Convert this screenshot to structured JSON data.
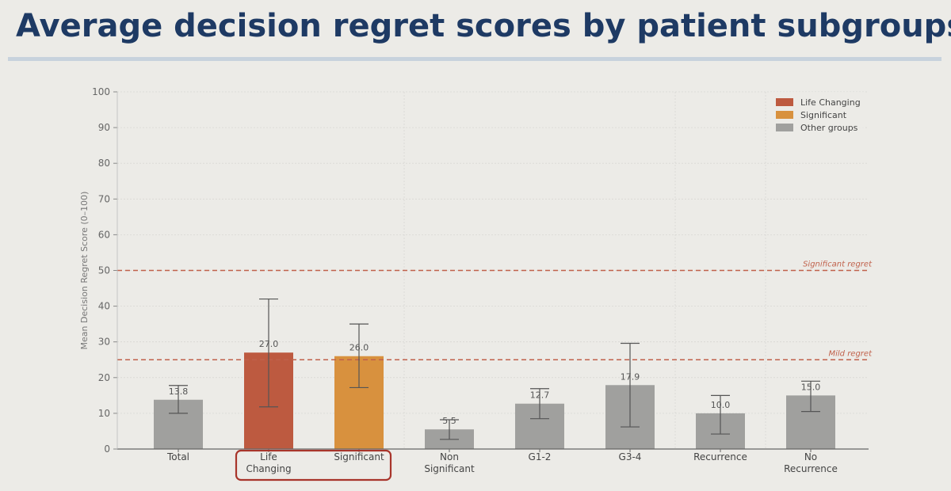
{
  "page": {
    "title": "Average decision regret scores by patient subgroups"
  },
  "chart_data": {
    "type": "bar",
    "title": "",
    "ylabel": "Mean Decision Regret Score (0–100)",
    "xlabel": "",
    "ylim": [
      0,
      100
    ],
    "yticks": [
      0,
      10,
      20,
      30,
      40,
      50,
      60,
      70,
      80,
      90,
      100
    ],
    "grid": true,
    "legend_position": "top-right",
    "categories": [
      {
        "label": [
          "Total"
        ],
        "value": 13.8,
        "value_label": "13.8",
        "err": [
          10.0,
          17.8
        ],
        "group": "other"
      },
      {
        "label": [
          "Life",
          "Changing"
        ],
        "value": 27.0,
        "value_label": "27.0",
        "err": [
          11.8,
          42.0
        ],
        "group": "life"
      },
      {
        "label": [
          "Significant"
        ],
        "value": 26.0,
        "value_label": "26.0",
        "err": [
          17.2,
          35.0
        ],
        "group": "sig"
      },
      {
        "label": [
          "Non",
          "Significant"
        ],
        "value": 5.5,
        "value_label": "5.5",
        "err": [
          2.7,
          8.2
        ],
        "group": "other"
      },
      {
        "label": [
          "G1-2"
        ],
        "value": 12.7,
        "value_label": "12.7",
        "err": [
          8.5,
          16.9
        ],
        "group": "other"
      },
      {
        "label": [
          "G3-4"
        ],
        "value": 17.9,
        "value_label": "17.9",
        "err": [
          6.2,
          29.6
        ],
        "group": "other"
      },
      {
        "label": [
          "Recurrence"
        ],
        "value": 10.0,
        "value_label": "10.0",
        "err": [
          4.2,
          15.0
        ],
        "group": "other"
      },
      {
        "label": [
          "No",
          "Recurrence"
        ],
        "value": 15.0,
        "value_label": "15.0",
        "err": [
          10.5,
          19.0
        ],
        "group": "other"
      }
    ],
    "reference_lines": [
      {
        "label": "Significant regret",
        "value": 50
      },
      {
        "label": "Mild regret",
        "value": 25
      }
    ],
    "legend": [
      {
        "group": "life",
        "label": "Life Changing"
      },
      {
        "group": "sig",
        "label": "Significant"
      },
      {
        "group": "other",
        "label": "Other groups"
      }
    ],
    "group_separators_after_index": [
      2,
      5,
      6
    ],
    "highlight_indices": [
      1,
      2
    ]
  },
  "colors": {
    "life": "#bd5a40",
    "sig": "#d8913e",
    "other": "#a0a09e",
    "reference": "#c0614b",
    "highlight_box": "#a8352b",
    "errorbar": "#555555",
    "grid": "#d8d8d4"
  }
}
